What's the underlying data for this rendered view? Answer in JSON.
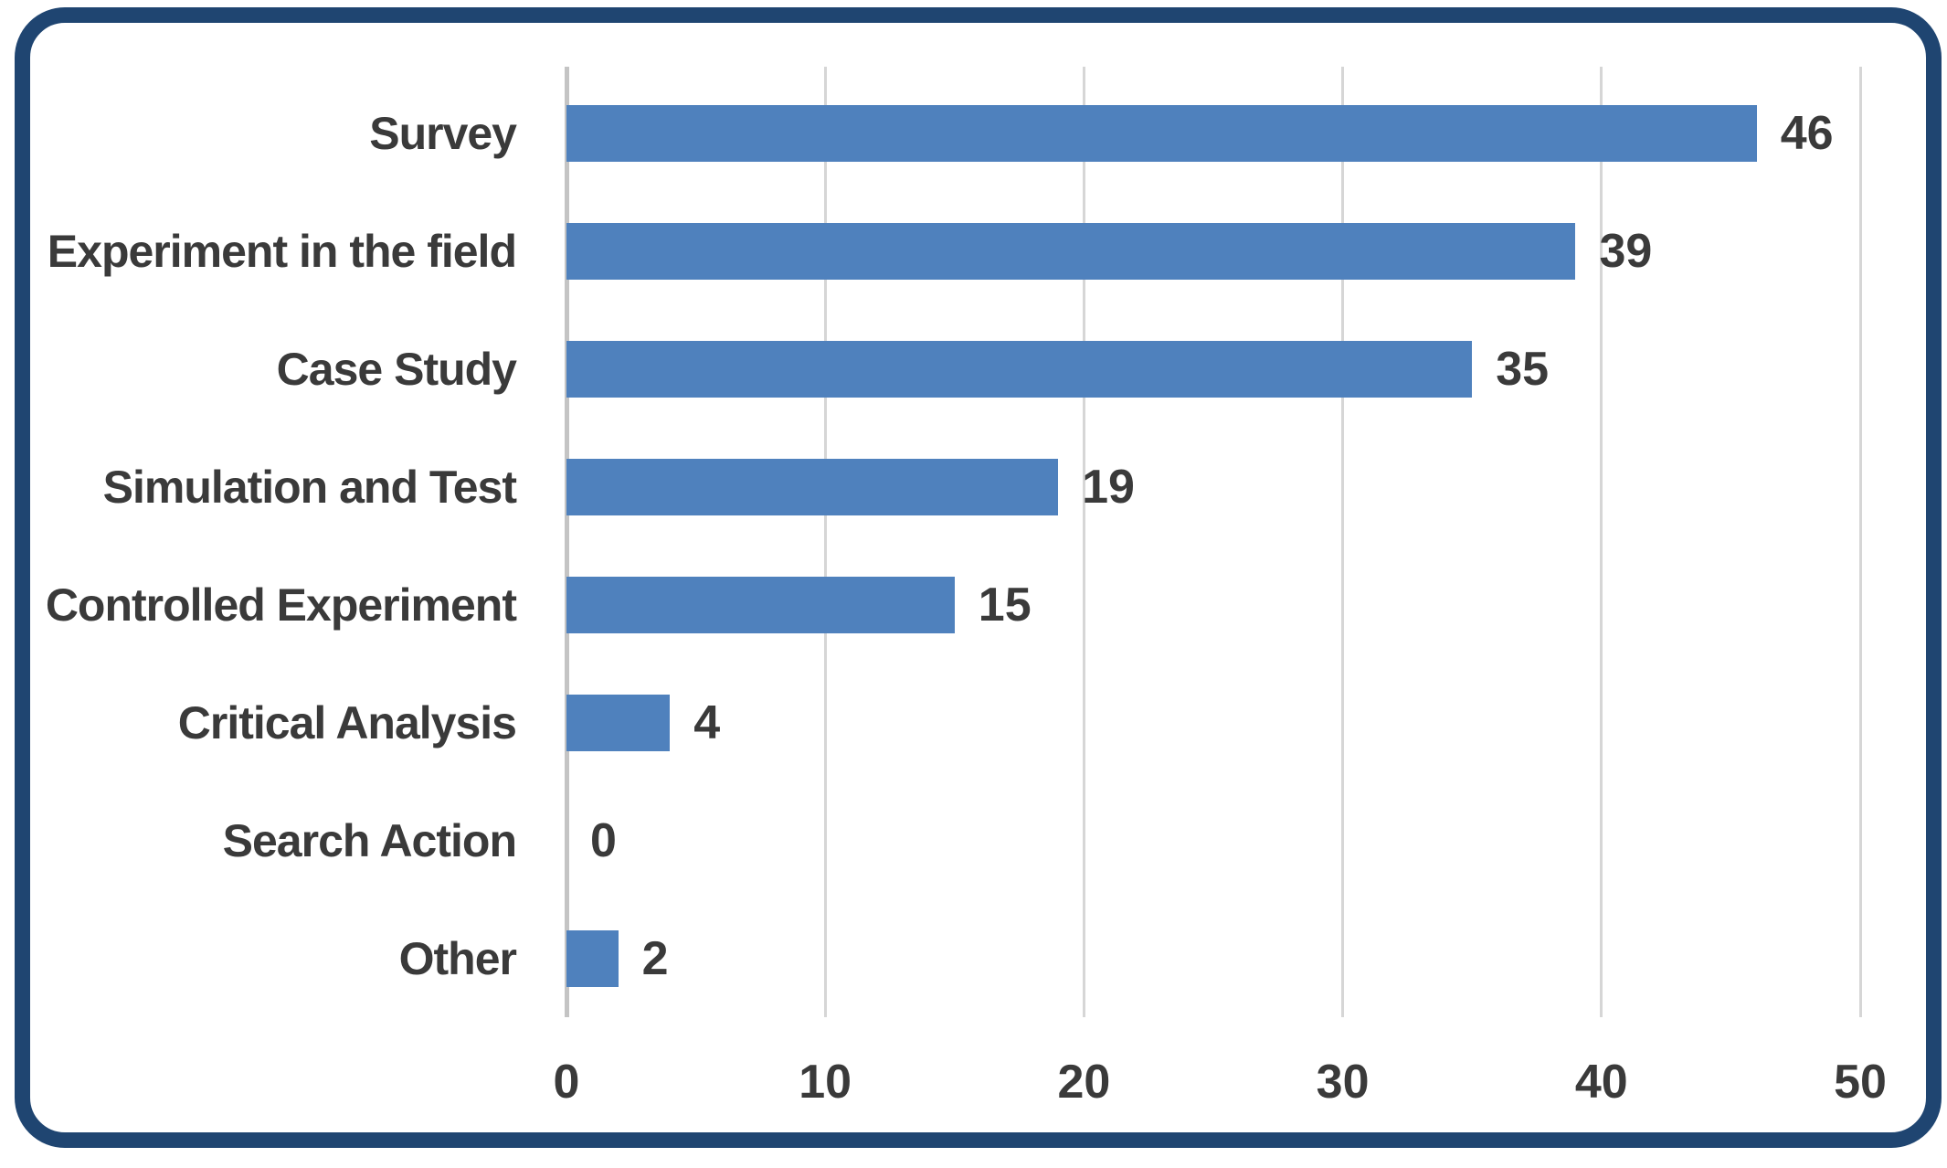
{
  "chart_data": {
    "type": "bar",
    "orientation": "horizontal",
    "title": "",
    "xlabel": "",
    "ylabel": "",
    "categories": [
      "Survey",
      "Experiment in the field",
      "Case Study",
      "Simulation and Test",
      "Controlled Experiment",
      "Critical Analysis",
      "Search Action",
      "Other"
    ],
    "values": [
      46,
      39,
      35,
      19,
      15,
      4,
      0,
      2
    ],
    "data_labels": [
      "46",
      "39",
      "35",
      "19",
      "15",
      "4",
      "0",
      "2"
    ],
    "xlim": [
      0,
      50
    ],
    "xticks": [
      0,
      10,
      20,
      30,
      40,
      50
    ],
    "grid": true,
    "legend": false,
    "colors": {
      "bar": "#4F81BD",
      "frame": "#1F4571",
      "gridline": "#D6D6D6",
      "axis_line": "#C4C4C4",
      "text": "#3A3A3A",
      "background": "#FFFFFF"
    }
  }
}
